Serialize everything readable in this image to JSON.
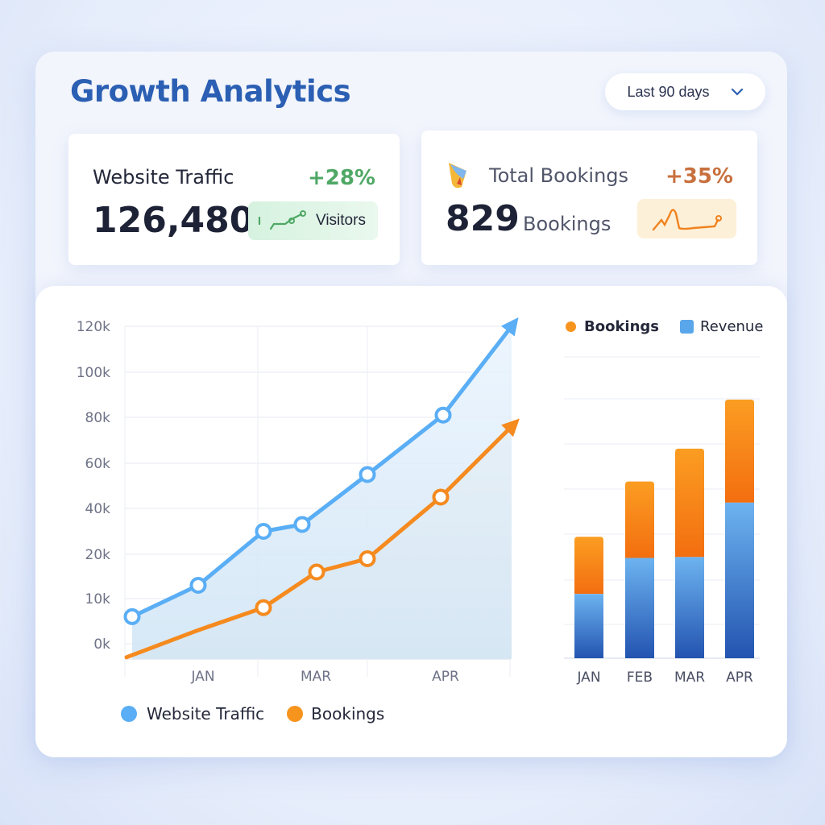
{
  "header": {
    "title": "Growth Analytics",
    "range_label": "Last 90 days",
    "range_icon": "chevron-down-icon"
  },
  "cards": [
    {
      "label": "Website Traffic",
      "value": "126,480",
      "change": "+28%",
      "badge": "Visitors",
      "color": "#4fa865",
      "badge_bg": "#dff5e6",
      "icon": "sparkline-icon"
    },
    {
      "label": "Total Bookings",
      "value": "829",
      "unit": "Bookings",
      "change": "+35%",
      "color": "#c8703e",
      "badge_bg": "#fdf0d8",
      "icon": "bell-icon"
    }
  ],
  "colors": {
    "traffic": "#5aaef5",
    "bookings": "#f58a1f",
    "revenue": "#4a8ee0",
    "title": "#2b5fb3"
  },
  "chart_data": [
    {
      "type": "line",
      "y_ticks": [
        "0k",
        "10k",
        "20k",
        "40k",
        "60k",
        "80k",
        "100k",
        "120k"
      ],
      "y_tick_values": [
        0,
        10,
        20,
        40,
        60,
        80,
        100,
        120
      ],
      "x_ticks": [
        "JAN",
        "MAR",
        "APR"
      ],
      "grid": true,
      "legend_position": "bottom",
      "series": [
        {
          "name": "Website Traffic",
          "values_k": [
            6,
            13,
            30,
            33,
            55,
            81,
            120
          ],
          "markers": [
            true,
            true,
            true,
            true,
            true,
            true,
            false
          ],
          "arrow_end": true
        },
        {
          "name": "Bookings",
          "values_k": [
            -3,
            3,
            8,
            16,
            19,
            45,
            76
          ],
          "markers": [
            false,
            false,
            true,
            true,
            true,
            true,
            false
          ],
          "arrow_end": true
        }
      ]
    },
    {
      "type": "bar",
      "stacked": true,
      "categories": [
        "JAN",
        "FEB",
        "MAR",
        "APR"
      ],
      "legend_position": "top",
      "grid": true,
      "ylim": [
        0,
        6.7
      ],
      "series": [
        {
          "name": "Revenue",
          "values": [
            1.43,
            2.23,
            2.25,
            3.46
          ]
        },
        {
          "name": "Bookings",
          "values": [
            1.27,
            1.7,
            2.41,
            2.29
          ]
        }
      ]
    }
  ]
}
